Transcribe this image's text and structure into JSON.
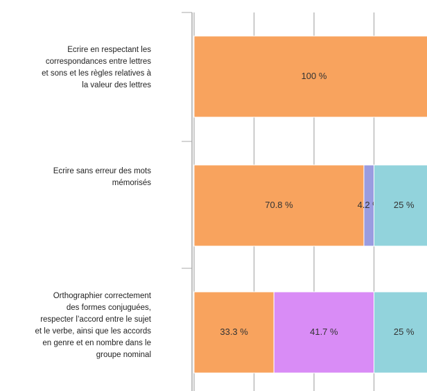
{
  "chart_data": {
    "type": "stacked-bar-horizontal",
    "categories": [
      [
        "Ecrire en respectant les",
        "correspondances entre lettres",
        "et sons et les règles relatives à",
        "la valeur des lettres"
      ],
      [
        "Ecrire sans erreur des mots",
        "mémorisés"
      ],
      [
        "Orthographier correctement",
        "des formes conjuguées,",
        "respecter l’accord entre le sujet",
        "et le verbe, ainsi que les accords",
        "en genre et en nombre dans le",
        "groupe nominal"
      ]
    ],
    "series": [
      {
        "color": "#f8a35e",
        "values": [
          100,
          70.8,
          33.3
        ],
        "value_labels": [
          "100 %",
          "70.8 %",
          "33.3 %"
        ]
      },
      {
        "color": "#9a9ce0",
        "values": [
          null,
          4.2,
          null
        ],
        "value_labels": [
          null,
          "4.2 %",
          null
        ]
      },
      {
        "color": "#d98cf6",
        "values": [
          null,
          null,
          41.7
        ],
        "value_labels": [
          null,
          null,
          "41.7 %"
        ]
      },
      {
        "color": "#92d3dc",
        "values": [
          null,
          25,
          25
        ],
        "value_labels": [
          null,
          "25 %",
          "25 %"
        ]
      }
    ],
    "xlim": [
      0,
      100
    ],
    "xticks": [
      0,
      25,
      50,
      75,
      100
    ],
    "grid": true
  }
}
